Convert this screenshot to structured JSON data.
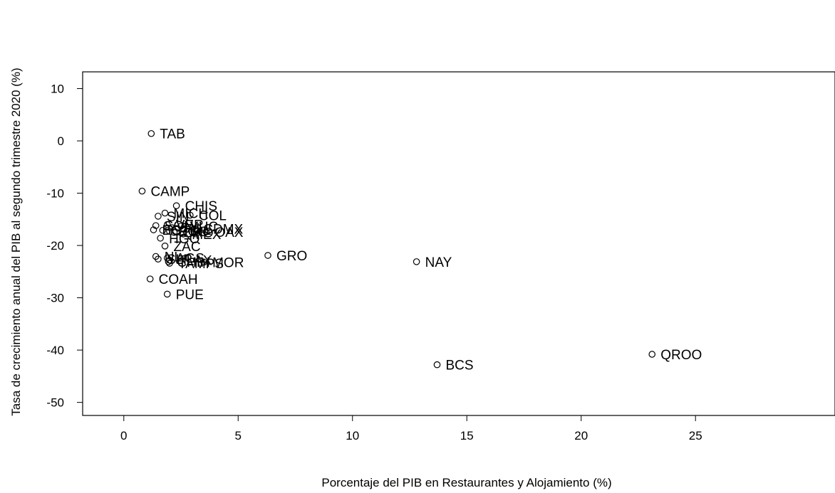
{
  "chart_data": {
    "type": "scatter",
    "title": "",
    "xlabel": "Porcentaje del PIB en Restaurantes y Alojamiento (%)",
    "ylabel": "Tasa de crecimiento anual del PIB al segundo trimestre 2020 (%)",
    "xlim": [
      -1.8,
      31.1
    ],
    "ylim": [
      -52.5,
      13.2
    ],
    "xticks": [
      0,
      5,
      10,
      15,
      20,
      25
    ],
    "yticks": [
      10,
      0,
      -10,
      -20,
      -30,
      -40,
      -50
    ],
    "grid": false,
    "legend": "none",
    "points": [
      {
        "label": "TAB",
        "x": 1.2,
        "y": 1.4
      },
      {
        "label": "CAMP",
        "x": 0.8,
        "y": -9.6
      },
      {
        "label": "CHIS",
        "x": 2.3,
        "y": -12.4
      },
      {
        "label": "MICH",
        "x": 1.8,
        "y": -13.8
      },
      {
        "label": "COL",
        "x": 2.9,
        "y": -14.2
      },
      {
        "label": "SIN",
        "x": 1.5,
        "y": -14.4
      },
      {
        "label": "VER",
        "x": 1.9,
        "y": -16.0
      },
      {
        "label": "YUC",
        "x": 2.5,
        "y": -16.3
      },
      {
        "label": "JAL",
        "x": 2.1,
        "y": -16.6
      },
      {
        "label": "SON",
        "x": 1.4,
        "y": -16.2
      },
      {
        "label": "CDMX",
        "x": 3.1,
        "y": -16.8
      },
      {
        "label": "BC",
        "x": 1.3,
        "y": -17.0
      },
      {
        "label": "DGO",
        "x": 2.0,
        "y": -17.3
      },
      {
        "label": "GTO",
        "x": 1.7,
        "y": -17.1
      },
      {
        "label": "QRO",
        "x": 2.2,
        "y": -17.5
      },
      {
        "label": "MEX",
        "x": 2.6,
        "y": -17.8
      },
      {
        "label": "OAX",
        "x": 3.6,
        "y": -17.4
      },
      {
        "label": "HGO",
        "x": 1.6,
        "y": -18.6
      },
      {
        "label": "ZAC",
        "x": 1.8,
        "y": -20.1
      },
      {
        "label": "NL",
        "x": 1.4,
        "y": -22.1
      },
      {
        "label": "AGS",
        "x": 1.9,
        "y": -22.4
      },
      {
        "label": "SLP",
        "x": 1.5,
        "y": -22.6
      },
      {
        "label": "TLAX",
        "x": 2.0,
        "y": -22.8
      },
      {
        "label": "CHIH",
        "x": 1.95,
        "y": -23.1
      },
      {
        "label": "TAMPS",
        "x": 2.0,
        "y": -23.4
      },
      {
        "label": "MOR",
        "x": 3.5,
        "y": -23.2
      },
      {
        "label": "GRO",
        "x": 6.3,
        "y": -21.9
      },
      {
        "label": "NAY",
        "x": 12.8,
        "y": -23.1
      },
      {
        "label": "COAH",
        "x": 1.15,
        "y": -26.4
      },
      {
        "label": "PUE",
        "x": 1.9,
        "y": -29.3
      },
      {
        "label": "BCS",
        "x": 13.7,
        "y": -42.8
      },
      {
        "label": "QROO",
        "x": 23.1,
        "y": -40.8
      }
    ]
  }
}
